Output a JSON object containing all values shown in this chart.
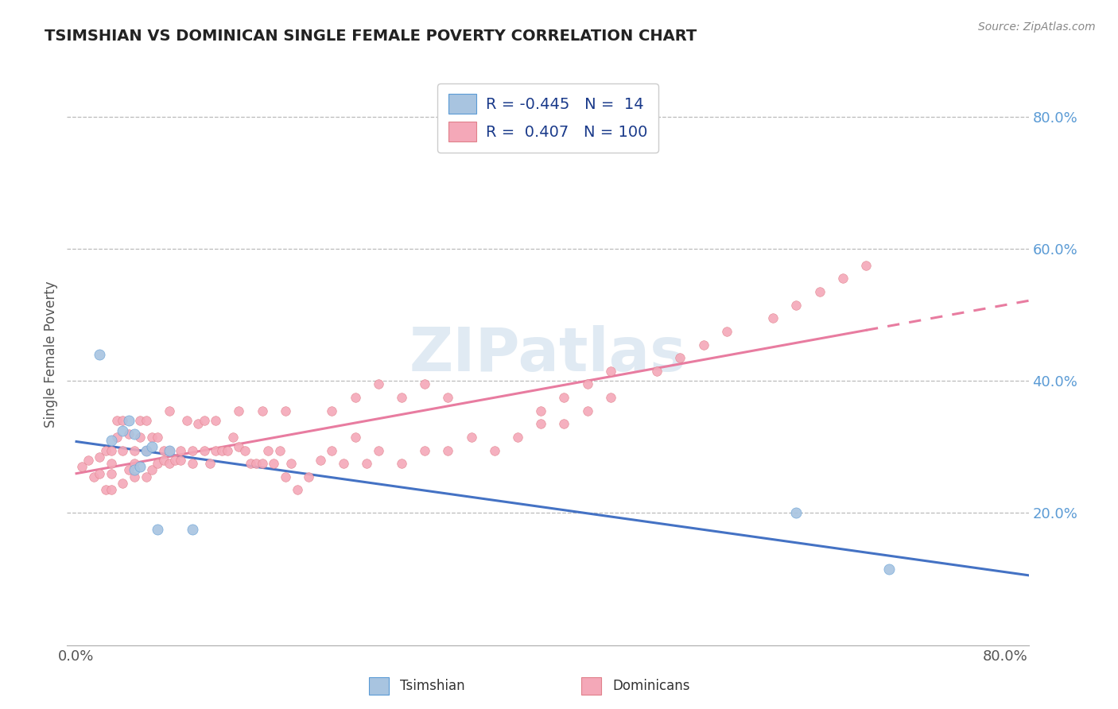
{
  "title": "TSIMSHIAN VS DOMINICAN SINGLE FEMALE POVERTY CORRELATION CHART",
  "source": "Source: ZipAtlas.com",
  "ylabel": "Single Female Poverty",
  "xlim": [
    0.0,
    0.8
  ],
  "ylim": [
    0.0,
    0.88
  ],
  "ytick_values": [
    0.2,
    0.4,
    0.6,
    0.8
  ],
  "ytick_labels": [
    "20.0%",
    "40.0%",
    "60.0%",
    "80.0%"
  ],
  "xtick_values": [
    0.0,
    0.8
  ],
  "xtick_labels": [
    "0.0%",
    "80.0%"
  ],
  "tsimshian_color": "#a8c4e0",
  "tsimshian_edge_color": "#5b9bd5",
  "dominican_color": "#f4a8b8",
  "dominican_edge_color": "#e0808a",
  "tsimshian_line_color": "#4472c4",
  "dominican_line_color": "#e87ca0",
  "watermark": "ZIPatlas",
  "watermark_color": "#c8daea",
  "background_color": "#ffffff",
  "grid_color": "#bbbbbb",
  "title_color": "#222222",
  "source_color": "#888888",
  "yticklabel_color": "#5b9bd5",
  "xticklabel_color": "#555555",
  "ylabel_color": "#555555",
  "legend_label_color": "#1a3a8a",
  "legend_r1": "R = -0.445",
  "legend_n1": "N =  14",
  "legend_r2": "R =  0.407",
  "legend_n2": "N = 100",
  "tsimshian_x": [
    0.02,
    0.03,
    0.04,
    0.045,
    0.05,
    0.05,
    0.055,
    0.06,
    0.065,
    0.07,
    0.08,
    0.1,
    0.62,
    0.7
  ],
  "tsimshian_y": [
    0.44,
    0.31,
    0.325,
    0.34,
    0.265,
    0.32,
    0.27,
    0.295,
    0.3,
    0.175,
    0.295,
    0.175,
    0.2,
    0.115
  ],
  "dominican_x": [
    0.005,
    0.01,
    0.015,
    0.02,
    0.02,
    0.025,
    0.025,
    0.03,
    0.03,
    0.03,
    0.03,
    0.035,
    0.035,
    0.04,
    0.04,
    0.04,
    0.045,
    0.045,
    0.05,
    0.05,
    0.05,
    0.055,
    0.055,
    0.06,
    0.06,
    0.06,
    0.065,
    0.065,
    0.07,
    0.07,
    0.075,
    0.075,
    0.08,
    0.08,
    0.08,
    0.085,
    0.09,
    0.09,
    0.095,
    0.1,
    0.1,
    0.105,
    0.11,
    0.11,
    0.115,
    0.12,
    0.12,
    0.125,
    0.13,
    0.135,
    0.14,
    0.145,
    0.15,
    0.155,
    0.16,
    0.165,
    0.17,
    0.175,
    0.18,
    0.185,
    0.19,
    0.2,
    0.21,
    0.22,
    0.23,
    0.24,
    0.25,
    0.26,
    0.28,
    0.3,
    0.32,
    0.34,
    0.36,
    0.38,
    0.4,
    0.42,
    0.44,
    0.46,
    0.5,
    0.52,
    0.54,
    0.56,
    0.6,
    0.62,
    0.64,
    0.66,
    0.68,
    0.4,
    0.42,
    0.44,
    0.46,
    0.22,
    0.24,
    0.26,
    0.28,
    0.3,
    0.32,
    0.14,
    0.16,
    0.18
  ],
  "dominican_y": [
    0.27,
    0.28,
    0.255,
    0.26,
    0.285,
    0.295,
    0.235,
    0.235,
    0.275,
    0.295,
    0.26,
    0.315,
    0.34,
    0.245,
    0.295,
    0.34,
    0.265,
    0.32,
    0.255,
    0.275,
    0.295,
    0.315,
    0.34,
    0.255,
    0.295,
    0.34,
    0.265,
    0.315,
    0.275,
    0.315,
    0.28,
    0.295,
    0.275,
    0.295,
    0.355,
    0.28,
    0.28,
    0.295,
    0.34,
    0.275,
    0.295,
    0.335,
    0.295,
    0.34,
    0.275,
    0.295,
    0.34,
    0.295,
    0.295,
    0.315,
    0.3,
    0.295,
    0.275,
    0.275,
    0.275,
    0.295,
    0.275,
    0.295,
    0.255,
    0.275,
    0.235,
    0.255,
    0.28,
    0.295,
    0.275,
    0.315,
    0.275,
    0.295,
    0.275,
    0.295,
    0.295,
    0.315,
    0.295,
    0.315,
    0.335,
    0.335,
    0.355,
    0.375,
    0.415,
    0.435,
    0.455,
    0.475,
    0.495,
    0.515,
    0.535,
    0.555,
    0.575,
    0.355,
    0.375,
    0.395,
    0.415,
    0.355,
    0.375,
    0.395,
    0.375,
    0.395,
    0.375,
    0.355,
    0.355,
    0.355
  ]
}
